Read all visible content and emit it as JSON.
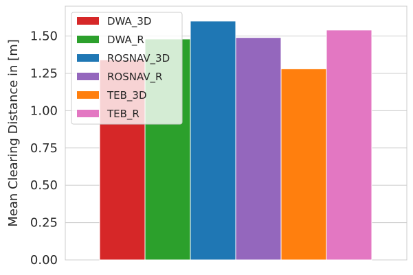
{
  "chart_data": {
    "type": "bar",
    "title": "",
    "xlabel": "",
    "ylabel": "Mean Clearing Distance in [m]",
    "ylim": [
      0,
      1.7
    ],
    "yticks": [
      "0.00",
      "0.25",
      "0.50",
      "0.75",
      "1.00",
      "1.25",
      "1.50"
    ],
    "ytick_values": [
      0,
      0.25,
      0.5,
      0.75,
      1.0,
      1.25,
      1.5
    ],
    "grid": true,
    "legend_position": "upper-left",
    "series": [
      {
        "name": "DWA_3D",
        "value": 1.34,
        "color": "#d62728"
      },
      {
        "name": "DWA_R",
        "value": 1.48,
        "color": "#2ca02c"
      },
      {
        "name": "ROSNAV_3D",
        "value": 1.6,
        "color": "#1f77b4"
      },
      {
        "name": "ROSNAV_R",
        "value": 1.49,
        "color": "#9467bd"
      },
      {
        "name": "TEB_3D",
        "value": 1.28,
        "color": "#ff7f0e"
      },
      {
        "name": "TEB_R",
        "value": 1.54,
        "color": "#e377c2"
      }
    ]
  }
}
